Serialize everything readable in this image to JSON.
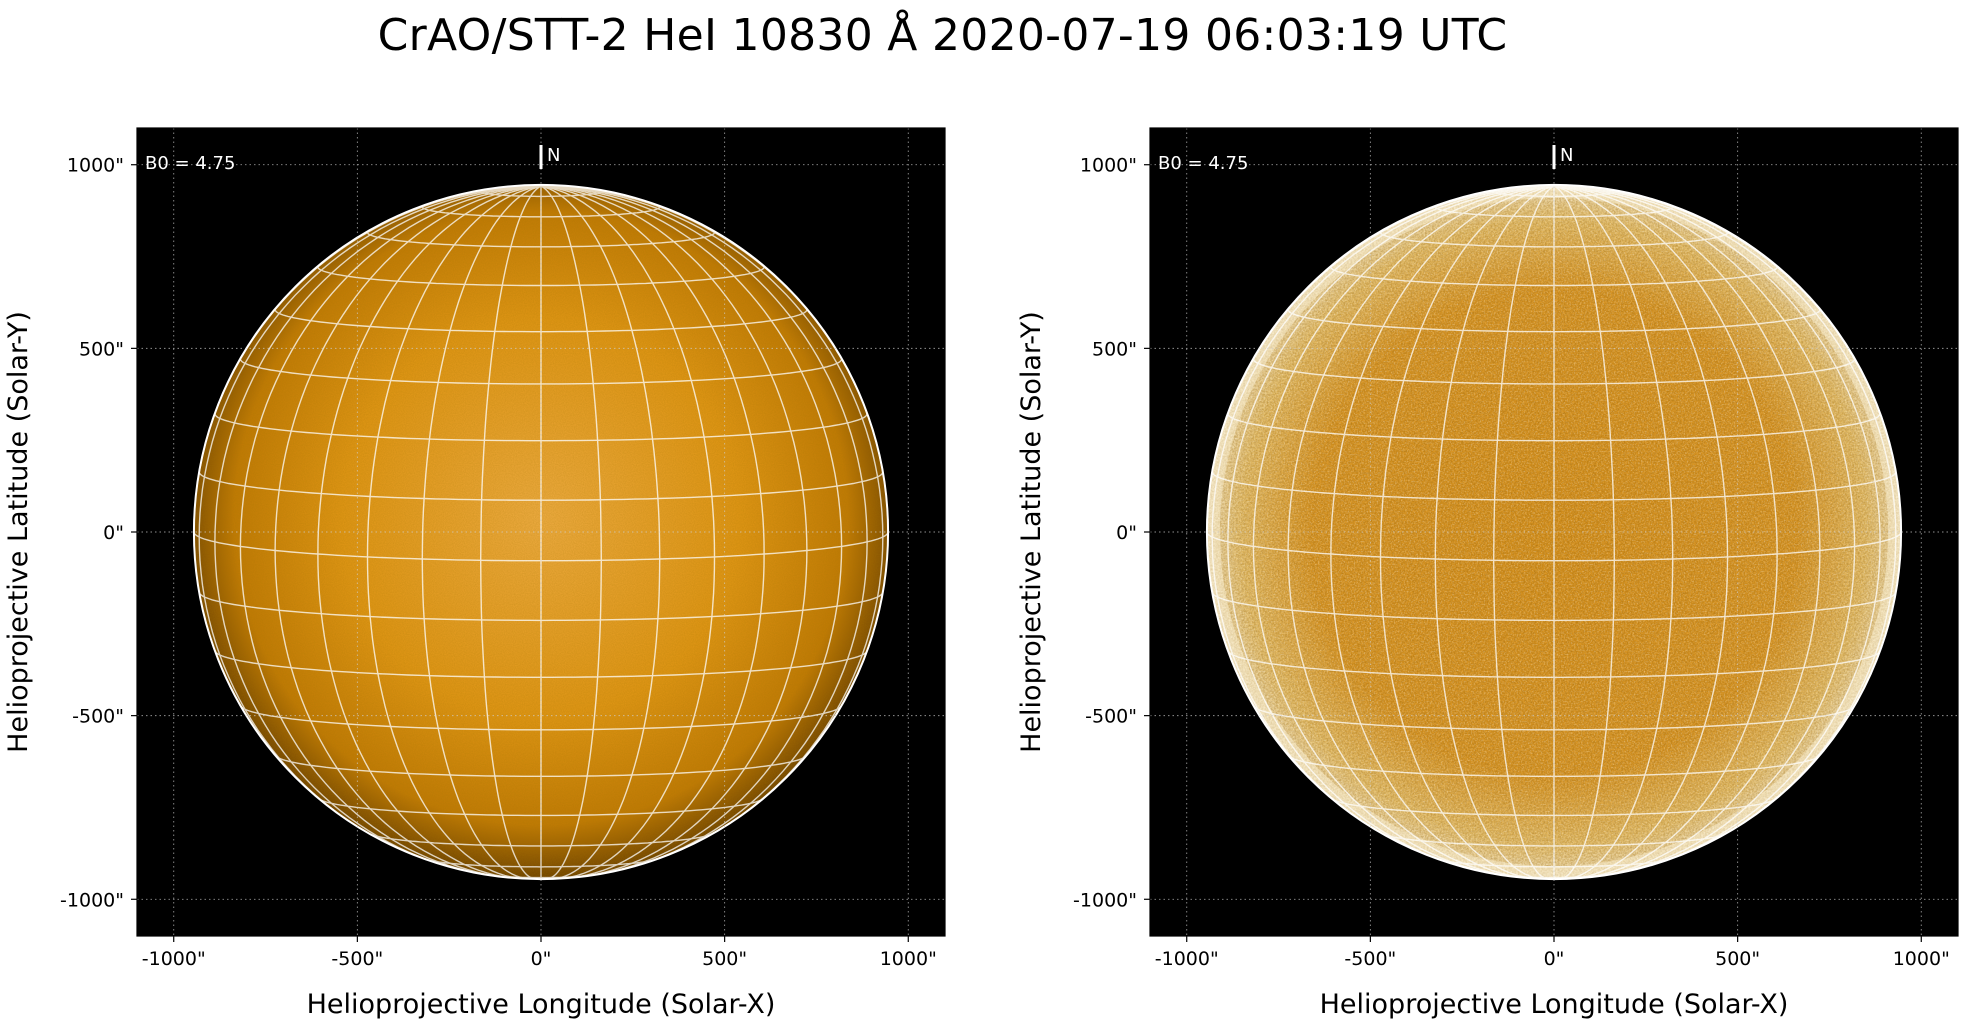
{
  "title": "CrAO/STT-2 HeI 10830 Å 2020-07-19 06:03:19 UTC",
  "colors": {
    "background": "#000000",
    "disk_center": "#f0a93a",
    "disk_mid": "#d98f12",
    "disk_limb": "#6e4300",
    "enhanced_center": "#e39a22",
    "enhanced_limb_bright": "#fff6dc",
    "grid": "#ffffff",
    "axes_grid": "#cfcfcf"
  },
  "panels": [
    {
      "id": "left",
      "variant": "raw",
      "b0_label": "B0 = 4.75",
      "north_label": "N",
      "xlabel": "Helioprojective Longitude (Solar-X)",
      "ylabel": "Helioprojective Latitude (Solar-Y)",
      "x_ticks": [
        "-1000\"",
        "-500\"",
        "0\"",
        "500\"",
        "1000\""
      ],
      "y_ticks": [
        "1000\"",
        "500\"",
        "0\"",
        "-500\"",
        "-1000\""
      ]
    },
    {
      "id": "right",
      "variant": "enhanced",
      "b0_label": "B0 = 4.75",
      "north_label": "N",
      "xlabel": "Helioprojective Longitude (Solar-X)",
      "ylabel": "Helioprojective Latitude (Solar-Y)",
      "x_ticks": [
        "-1000\"",
        "-500\"",
        "0\"",
        "500\"",
        "1000\""
      ],
      "y_ticks": [
        "1000\"",
        "500\"",
        "0\"",
        "-500\"",
        "-1000\""
      ]
    }
  ],
  "image_data": {
    "solar_radius_arcsec": 945,
    "b0_degrees": 4.75,
    "axis_range_arcsec": [
      -1100,
      1100
    ],
    "tick_values_arcsec": [
      -1000,
      -500,
      0,
      500,
      1000
    ],
    "grid_latitudes_deg": [
      -80,
      -70,
      -60,
      -50,
      -40,
      -30,
      -20,
      -10,
      0,
      10,
      20,
      30,
      40,
      50,
      60,
      70,
      80
    ],
    "grid_longitudes_deg": [
      -90,
      -80,
      -70,
      -60,
      -50,
      -40,
      -30,
      -20,
      -10,
      0,
      10,
      20,
      30,
      40,
      50,
      60,
      70,
      80,
      90
    ]
  }
}
